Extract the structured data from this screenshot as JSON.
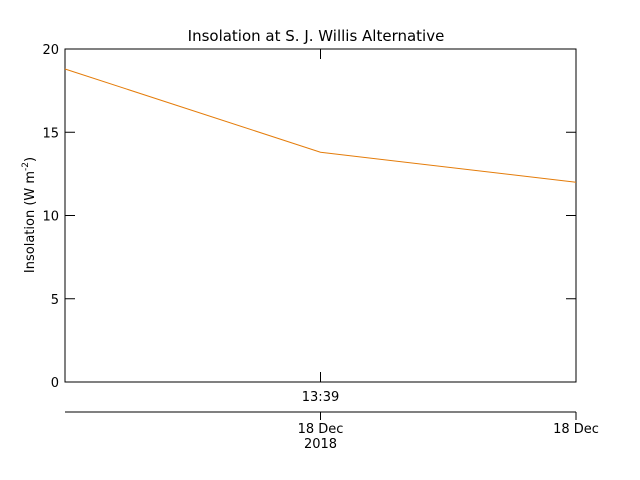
{
  "chart_data": {
    "type": "line",
    "title": "Insolation at S. J. Willis Alternative",
    "ylabel": [
      "Insolation (W m",
      "-2",
      ")"
    ],
    "categories": [
      null,
      "13:39",
      null
    ],
    "date_labels": [
      null,
      [
        "18 Dec",
        "2018"
      ],
      [
        "18 Dec"
      ]
    ],
    "series": [
      {
        "name": "Insolation",
        "color": "#e47c0a",
        "values": [
          18.8,
          13.8,
          12
        ]
      }
    ],
    "ylim": [
      0,
      20
    ],
    "yticks": [
      0,
      5,
      10,
      15,
      20
    ]
  }
}
